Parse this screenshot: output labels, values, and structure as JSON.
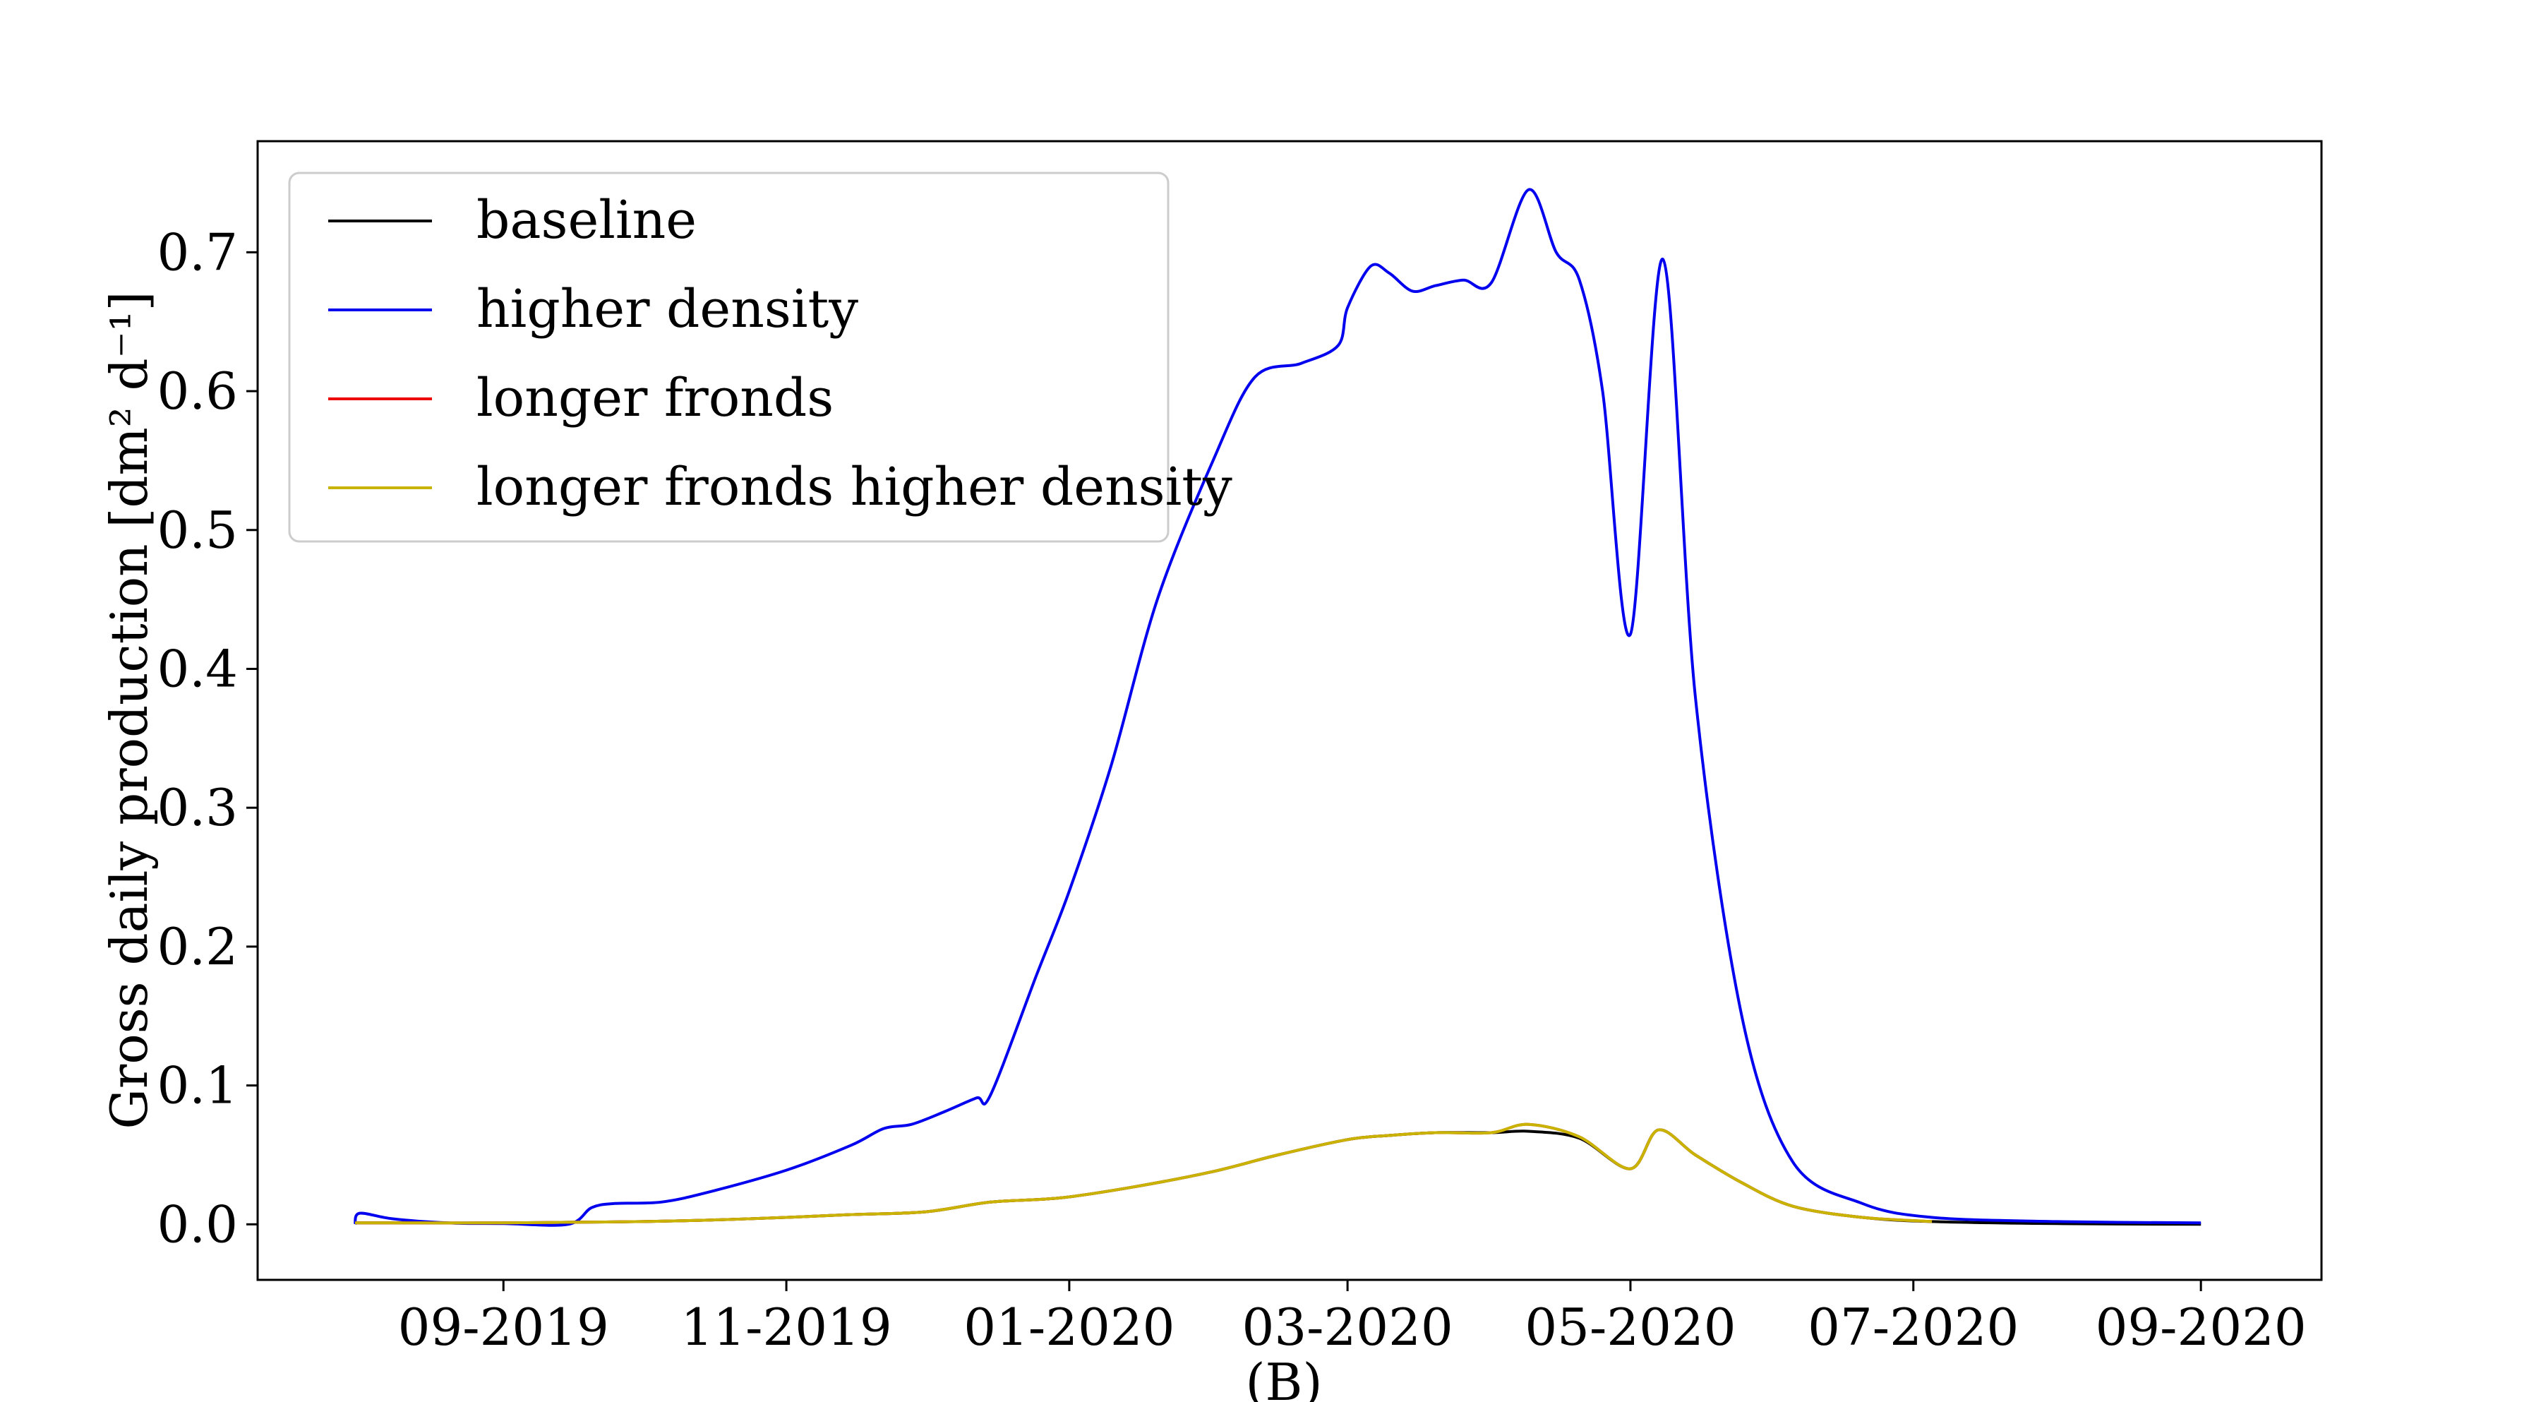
{
  "chart_data": {
    "type": "line",
    "title": "",
    "xlabel": "(B)",
    "ylabel": "Gross daily production [dm² d⁻¹]",
    "ylim": [
      -0.04,
      0.78
    ],
    "xlim": [
      "2019-07-10",
      "2020-09-27"
    ],
    "x_ticks": [
      {
        "label": "09-2019",
        "date": "2019-09-01"
      },
      {
        "label": "11-2019",
        "date": "2019-11-01"
      },
      {
        "label": "01-2020",
        "date": "2020-01-01"
      },
      {
        "label": "03-2020",
        "date": "2020-03-01"
      },
      {
        "label": "05-2020",
        "date": "2020-05-01"
      },
      {
        "label": "07-2020",
        "date": "2020-07-01"
      },
      {
        "label": "09-2020",
        "date": "2020-09-01"
      }
    ],
    "y_ticks": [
      0.0,
      0.1,
      0.2,
      0.3,
      0.4,
      0.5,
      0.6,
      0.7
    ],
    "y_tick_labels": [
      "0.0",
      "0.1",
      "0.2",
      "0.3",
      "0.4",
      "0.5",
      "0.6",
      "0.7"
    ],
    "grid": false,
    "legend_position": "top-left",
    "series": [
      {
        "name": "baseline",
        "color": "#000000",
        "x": [
          "2019-07-31",
          "2019-08-15",
          "2019-09-01",
          "2019-09-15",
          "2019-10-01",
          "2019-10-15",
          "2019-11-01",
          "2019-11-15",
          "2019-12-01",
          "2019-12-15",
          "2019-12-30",
          "2020-01-15",
          "2020-02-01",
          "2020-02-15",
          "2020-03-01",
          "2020-03-10",
          "2020-03-20",
          "2020-04-01",
          "2020-04-09",
          "2020-04-20",
          "2020-05-01",
          "2020-05-07",
          "2020-05-15",
          "2020-05-25",
          "2020-06-05",
          "2020-06-20",
          "2020-07-05",
          "2020-08-01",
          "2020-09-01"
        ],
        "y": [
          0.001,
          0.001,
          0.001,
          0.0015,
          0.002,
          0.003,
          0.005,
          0.007,
          0.009,
          0.016,
          0.019,
          0.027,
          0.038,
          0.05,
          0.061,
          0.064,
          0.066,
          0.066,
          0.067,
          0.062,
          0.04,
          0.068,
          0.05,
          0.03,
          0.013,
          0.005,
          0.002,
          0.0005,
          0.0
        ]
      },
      {
        "name": "higher density",
        "color": "#0000ee",
        "x": [
          "2019-07-31",
          "2019-08-01",
          "2019-08-08",
          "2019-08-20",
          "2019-09-01",
          "2019-09-15",
          "2019-09-20",
          "2019-09-25",
          "2019-10-05",
          "2019-10-15",
          "2019-11-01",
          "2019-11-15",
          "2019-11-22",
          "2019-11-28",
          "2019-12-05",
          "2019-12-12",
          "2019-12-15",
          "2019-12-25",
          "2020-01-01",
          "2020-01-10",
          "2020-01-20",
          "2020-02-01",
          "2020-02-10",
          "2020-02-20",
          "2020-02-28",
          "2020-03-01",
          "2020-03-06",
          "2020-03-10",
          "2020-03-15",
          "2020-03-20",
          "2020-03-26",
          "2020-04-01",
          "2020-04-09",
          "2020-04-15",
          "2020-04-20",
          "2020-04-25",
          "2020-05-01",
          "2020-05-08",
          "2020-05-15",
          "2020-05-25",
          "2020-06-05",
          "2020-06-20",
          "2020-07-05",
          "2020-08-01",
          "2020-09-01"
        ],
        "y": [
          0.0,
          0.008,
          0.004,
          0.001,
          0.0005,
          0.0,
          0.012,
          0.015,
          0.016,
          0.023,
          0.039,
          0.057,
          0.069,
          0.072,
          0.081,
          0.091,
          0.093,
          0.18,
          0.24,
          0.33,
          0.45,
          0.55,
          0.61,
          0.62,
          0.633,
          0.66,
          0.69,
          0.685,
          0.672,
          0.676,
          0.68,
          0.678,
          0.745,
          0.7,
          0.68,
          0.6,
          0.425,
          0.695,
          0.38,
          0.15,
          0.045,
          0.015,
          0.005,
          0.002,
          0.001
        ]
      },
      {
        "name": "longer fronds",
        "color": "#ee0000",
        "x": [
          "2019-07-31",
          "2019-08-15",
          "2019-09-01",
          "2019-09-15",
          "2019-10-01",
          "2019-10-15",
          "2019-11-01",
          "2019-11-15",
          "2019-12-01",
          "2019-12-15",
          "2019-12-30",
          "2020-01-15",
          "2020-02-01",
          "2020-02-15",
          "2020-03-01",
          "2020-03-10",
          "2020-03-20",
          "2020-04-01",
          "2020-04-09",
          "2020-04-20",
          "2020-05-01",
          "2020-05-07",
          "2020-05-15",
          "2020-05-25",
          "2020-06-05",
          "2020-06-20",
          "2020-07-05"
        ],
        "y": [
          0.001,
          0.001,
          0.001,
          0.0015,
          0.002,
          0.003,
          0.005,
          0.007,
          0.009,
          0.016,
          0.019,
          0.027,
          0.038,
          0.05,
          0.061,
          0.064,
          0.066,
          0.066,
          0.072,
          0.063,
          0.04,
          0.068,
          0.05,
          0.03,
          0.013,
          0.005,
          0.002
        ]
      },
      {
        "name": "longer fronds higher density",
        "color": "#c8b400",
        "x": [
          "2019-07-31",
          "2019-08-15",
          "2019-09-01",
          "2019-09-15",
          "2019-10-01",
          "2019-10-15",
          "2019-11-01",
          "2019-11-15",
          "2019-12-01",
          "2019-12-15",
          "2019-12-30",
          "2020-01-15",
          "2020-02-01",
          "2020-02-15",
          "2020-03-01",
          "2020-03-10",
          "2020-03-20",
          "2020-04-01",
          "2020-04-09",
          "2020-04-20",
          "2020-05-01",
          "2020-05-07",
          "2020-05-15",
          "2020-05-25",
          "2020-06-05",
          "2020-06-20",
          "2020-07-05"
        ],
        "y": [
          0.001,
          0.001,
          0.001,
          0.0015,
          0.002,
          0.003,
          0.005,
          0.007,
          0.009,
          0.016,
          0.019,
          0.027,
          0.038,
          0.05,
          0.061,
          0.064,
          0.066,
          0.066,
          0.072,
          0.063,
          0.04,
          0.068,
          0.05,
          0.03,
          0.013,
          0.005,
          0.002
        ]
      }
    ]
  }
}
